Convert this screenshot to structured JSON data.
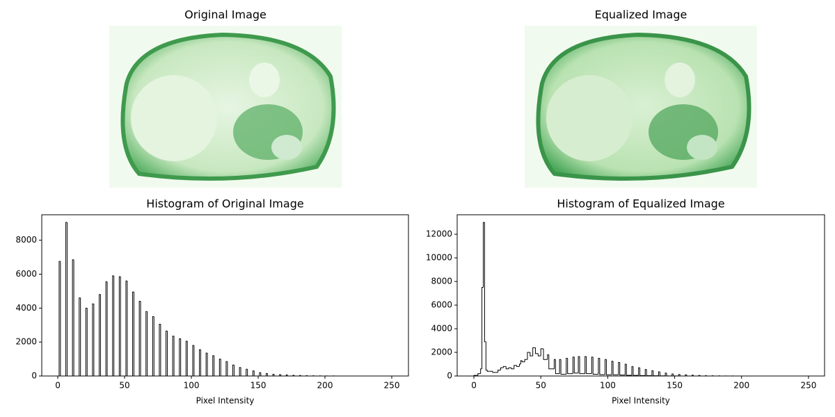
{
  "chart_data": [
    {
      "type": "image",
      "title": "Original Image"
    },
    {
      "type": "image",
      "title": "Equalized Image"
    },
    {
      "type": "histogram",
      "title": "Histogram of Original Image",
      "xlabel": "Pixel Intensity",
      "color": "#000000",
      "bins": [
        1,
        2,
        6,
        7,
        11,
        12,
        16,
        17,
        21,
        22,
        26,
        27,
        31,
        32,
        36,
        37,
        41,
        42,
        46,
        47,
        51,
        52,
        56,
        57,
        61,
        62,
        66,
        67,
        71,
        72,
        76,
        77,
        81,
        82,
        86,
        87,
        91,
        92,
        96,
        97,
        101,
        102,
        106,
        107,
        111,
        112,
        116,
        117,
        121,
        122,
        126,
        127,
        131,
        132,
        136,
        137,
        141,
        142,
        146,
        147,
        151,
        152,
        156,
        157,
        161,
        162,
        166,
        167,
        171,
        172,
        176,
        177,
        181,
        182,
        186,
        187,
        191,
        192,
        196,
        197,
        201,
        202,
        206,
        207
      ],
      "values": [
        6750,
        0,
        9050,
        0,
        6850,
        0,
        4600,
        0,
        4000,
        0,
        4250,
        0,
        4800,
        0,
        5550,
        0,
        5900,
        0,
        5850,
        0,
        5600,
        0,
        4950,
        0,
        4400,
        0,
        3800,
        0,
        3500,
        0,
        3050,
        0,
        2650,
        0,
        2350,
        0,
        2200,
        0,
        2050,
        0,
        1800,
        0,
        1550,
        0,
        1350,
        0,
        1200,
        0,
        1000,
        0,
        850,
        0,
        650,
        0,
        500,
        0,
        400,
        0,
        300,
        0,
        200,
        0,
        150,
        0,
        100,
        0,
        80,
        0,
        60,
        0,
        40,
        0,
        30,
        0,
        20,
        0,
        15,
        0,
        10,
        0,
        5,
        0,
        3
      ],
      "xlim": [
        -12,
        262.5
      ],
      "xticks": [
        0,
        50,
        100,
        150,
        200,
        250
      ],
      "ylim": [
        0,
        9500
      ],
      "yticks": [
        0,
        2000,
        4000,
        6000,
        8000
      ]
    },
    {
      "type": "histogram",
      "title": "Histogram of Equalized Image",
      "xlabel": "Pixel Intensity",
      "color": "#000000",
      "bins": [
        0,
        3,
        5,
        6,
        7,
        8,
        9,
        10,
        14,
        18,
        20,
        22,
        24,
        26,
        28,
        30,
        32,
        34,
        35,
        36,
        38,
        40,
        42,
        44,
        46,
        48,
        50,
        52,
        55,
        56,
        60,
        61,
        64,
        65,
        69,
        70,
        74,
        75,
        78,
        79,
        83,
        84,
        88,
        89,
        93,
        94,
        98,
        99,
        103,
        104,
        108,
        109,
        113,
        114,
        118,
        119,
        123,
        124,
        128,
        129,
        133,
        134,
        138,
        139,
        143,
        144,
        148,
        149,
        153,
        154,
        158,
        159,
        163,
        164,
        168,
        169,
        173,
        174,
        178,
        179,
        183,
        184,
        188,
        189,
        193,
        194,
        198,
        199,
        205,
        206
      ],
      "values": [
        50,
        200,
        600,
        7500,
        13000,
        2900,
        500,
        400,
        300,
        500,
        700,
        800,
        600,
        700,
        600,
        900,
        800,
        1000,
        1300,
        1200,
        1400,
        2000,
        1700,
        2400,
        1900,
        1700,
        2300,
        1400,
        1800,
        600,
        1400,
        200,
        1400,
        150,
        1500,
        200,
        1600,
        250,
        1650,
        200,
        1650,
        200,
        1600,
        150,
        1500,
        120,
        1400,
        100,
        1250,
        100,
        1150,
        80,
        1000,
        60,
        800,
        50,
        700,
        40,
        550,
        30,
        450,
        20,
        350,
        15,
        250,
        10,
        180,
        5,
        130,
        0,
        100,
        0,
        70,
        0,
        50,
        0,
        30,
        0,
        20,
        0,
        15,
        0,
        10,
        0,
        5,
        0,
        3,
        0,
        2
      ],
      "xlim": [
        -12.5,
        262
      ],
      "xticks": [
        0,
        50,
        100,
        150,
        200,
        250
      ],
      "ylim": [
        0,
        13650
      ],
      "yticks": [
        0,
        2000,
        4000,
        6000,
        8000,
        10000,
        12000
      ]
    }
  ]
}
